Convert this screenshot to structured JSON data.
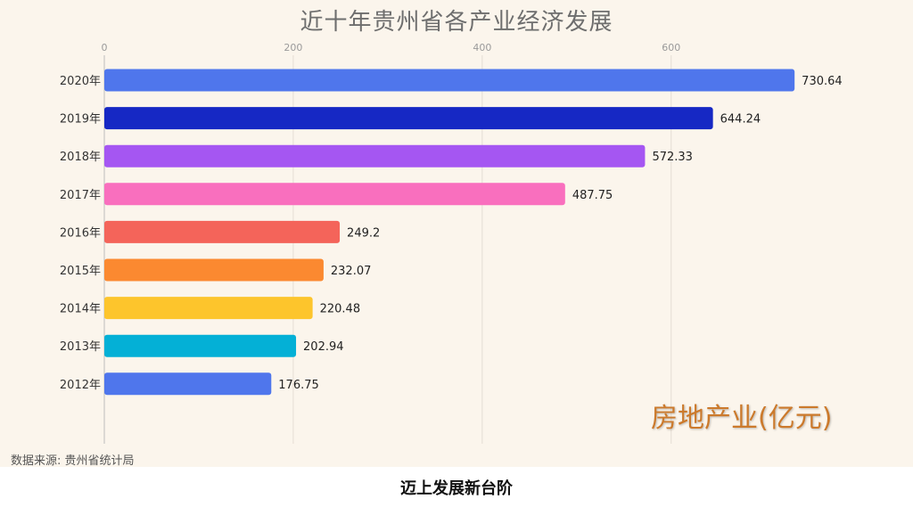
{
  "chart_data": {
    "type": "bar",
    "orientation": "horizontal",
    "title": "近十年贵州省各产业经济发展",
    "series_label": "房地产业(亿元)",
    "categories": [
      "2020年",
      "2019年",
      "2018年",
      "2017年",
      "2016年",
      "2015年",
      "2014年",
      "2013年",
      "2012年"
    ],
    "values": [
      730.64,
      644.24,
      572.33,
      487.75,
      249.2,
      232.07,
      220.48,
      202.94,
      176.75
    ],
    "value_labels": [
      "730.64",
      "644.24",
      "572.33",
      "487.75",
      "249.2",
      "232.07",
      "220.48",
      "202.94",
      "176.75"
    ],
    "colors": [
      "#4f76ec",
      "#1628c4",
      "#a556f2",
      "#f96fbe",
      "#f4645a",
      "#fb8930",
      "#fdc52c",
      "#04b0d6",
      "#4f76ec"
    ],
    "x_ticks": [
      "0",
      "200",
      "400",
      "600"
    ],
    "x_tick_values": [
      0,
      200,
      400,
      600
    ],
    "xlim": [
      0,
      800
    ],
    "xlabel": "",
    "ylabel": "",
    "axis_position": "top",
    "grid": true
  },
  "source_note": "数据来源: 贵州省统计局",
  "caption": "迈上发展新台阶"
}
